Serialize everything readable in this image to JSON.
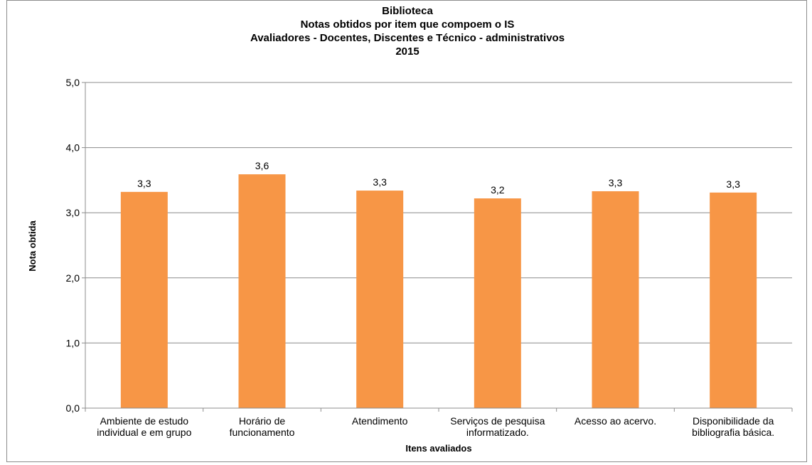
{
  "chart_data": {
    "type": "bar",
    "title_lines": [
      "Biblioteca",
      "Notas  obtidos  por item que compoem o IS",
      "Avaliadores - Docentes, Discentes e Técnico - administrativos",
      "2015"
    ],
    "xlabel": "Itens avaliados",
    "ylabel": "Nota obtida",
    "ylim": [
      0,
      5
    ],
    "yticks": [
      "0,0",
      "1,0",
      "2,0",
      "3,0",
      "4,0",
      "5,0"
    ],
    "grid": true,
    "legend": "none",
    "bar_color": "#f79646",
    "categories": [
      [
        "Ambiente de estudo",
        "individual e em grupo"
      ],
      [
        "Horário de",
        "funcionamento"
      ],
      [
        "Atendimento"
      ],
      [
        "Serviços de pesquisa",
        "informatizado."
      ],
      [
        "Acesso ao acervo."
      ],
      [
        "Disponibilidade da",
        "bibliografia básica."
      ]
    ],
    "values": [
      3.32,
      3.59,
      3.34,
      3.22,
      3.33,
      3.31
    ],
    "data_labels": [
      "3,3",
      "3,6",
      "3,3",
      "3,2",
      "3,3",
      "3,3"
    ]
  }
}
